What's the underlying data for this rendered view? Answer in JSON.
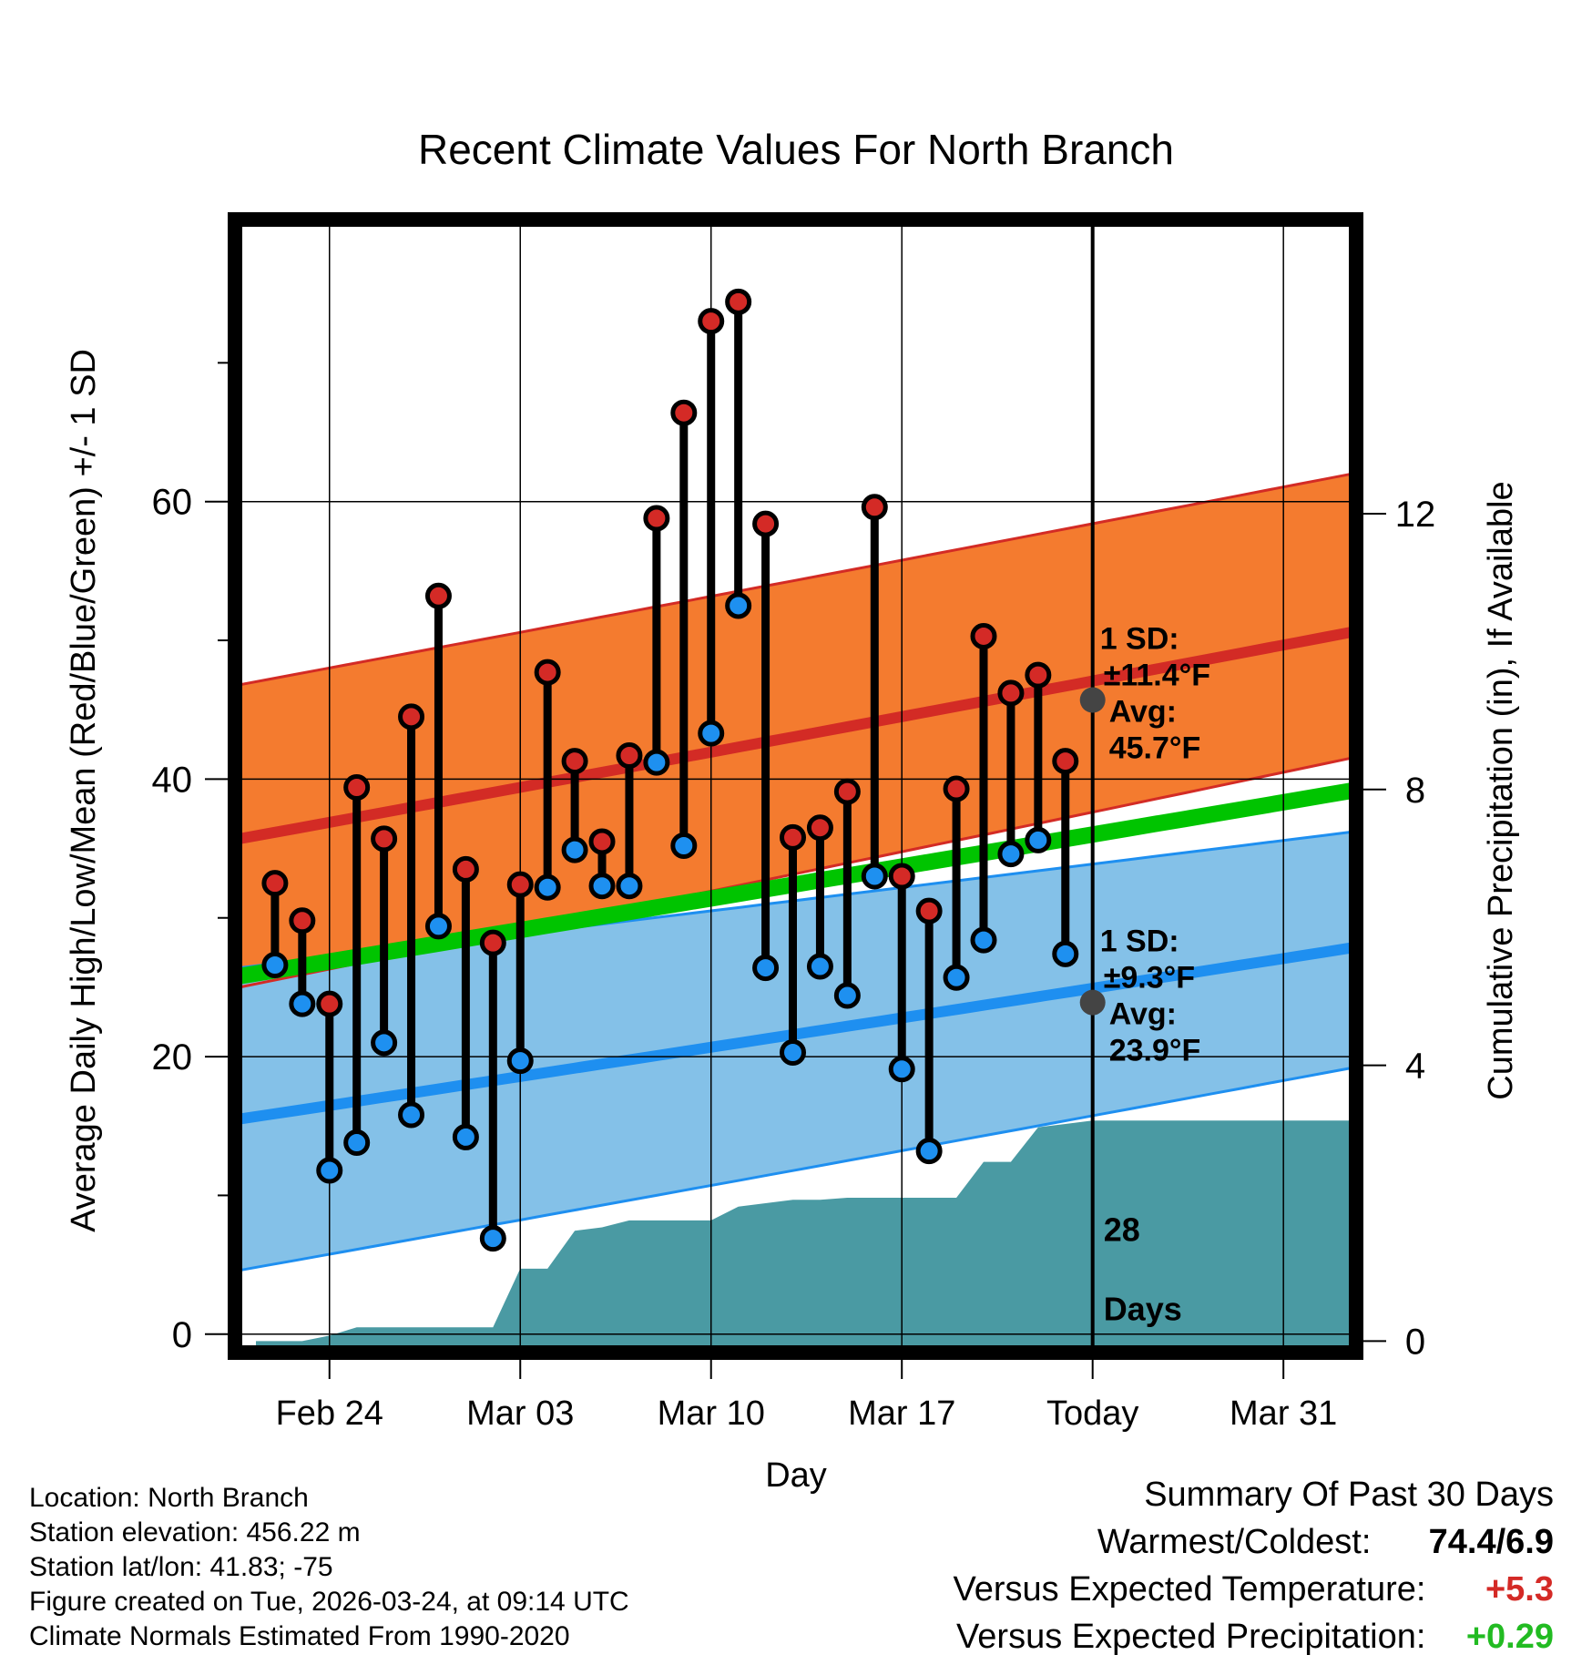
{
  "chart_data": {
    "type": "line",
    "title": "Recent Climate Values For North Branch",
    "xlabel": "Day",
    "ylabel": "Average Daily High/Low/Mean (Red/Blue/Green) +/- 1 SD",
    "y2label": "Cumulative Precipitation (in), If Available",
    "ylim": [
      -1,
      80
    ],
    "y2lim": [
      -0.1,
      16.2
    ],
    "xlim": [
      -0.3,
      40.5
    ],
    "y_ticks": [
      {
        "v": 0,
        "label": "0"
      },
      {
        "v": 20,
        "label": "20"
      },
      {
        "v": 40,
        "label": "40"
      },
      {
        "v": 60,
        "label": "60"
      }
    ],
    "y_minor_ticks": [
      10,
      30,
      50,
      70
    ],
    "y2_ticks": [
      {
        "v": 0,
        "label": "0"
      },
      {
        "v": 4,
        "label": "4"
      },
      {
        "v": 8,
        "label": "8"
      },
      {
        "v": 12,
        "label": "12"
      }
    ],
    "x_ticks": [
      {
        "d": 3,
        "label": "Feb 24"
      },
      {
        "d": 10,
        "label": "Mar 03"
      },
      {
        "d": 17,
        "label": "Mar 10"
      },
      {
        "d": 24,
        "label": "Mar 17"
      },
      {
        "d": 31,
        "label": "Today"
      },
      {
        "d": 38,
        "label": "Mar 31"
      }
    ],
    "today_index": 31,
    "normals": {
      "high_mean": {
        "start": 35.7,
        "end": 50.3
      },
      "high_upper": {
        "start": 46.8,
        "end": 61.7
      },
      "high_lower": {
        "start": 25.0,
        "end": 41.2
      },
      "low_mean": {
        "start": 15.5,
        "end": 27.6
      },
      "low_upper": {
        "start": 26.4,
        "end": 36.0
      },
      "low_lower": {
        "start": 4.6,
        "end": 18.9
      },
      "mean_line": {
        "start": 25.8,
        "end": 38.9
      }
    },
    "observed": {
      "day": [
        1,
        2,
        3,
        4,
        5,
        6,
        7,
        8,
        9,
        10,
        11,
        12,
        13,
        14,
        15,
        16,
        17,
        18,
        19,
        20,
        21,
        22,
        23,
        24,
        25,
        26,
        27,
        28,
        29,
        30
      ],
      "high": [
        32.5,
        29.8,
        23.8,
        39.4,
        35.7,
        44.5,
        53.2,
        33.5,
        28.2,
        32.4,
        47.7,
        41.3,
        35.5,
        41.7,
        58.8,
        66.4,
        73.0,
        74.4,
        58.4,
        35.8,
        36.5,
        39.1,
        59.6,
        33.0,
        30.5,
        39.3,
        50.3,
        46.2,
        47.5,
        41.3
      ],
      "low": [
        26.6,
        23.8,
        11.8,
        13.8,
        21.0,
        15.8,
        29.4,
        14.2,
        6.9,
        19.7,
        32.2,
        34.9,
        32.3,
        32.3,
        41.2,
        35.2,
        43.3,
        52.5,
        26.4,
        20.3,
        26.5,
        24.4,
        33.0,
        19.1,
        13.2,
        25.7,
        28.4,
        34.6,
        35.6,
        27.4
      ]
    },
    "precipitation": {
      "x": [
        0.3,
        2.0,
        3.0,
        4.0,
        5.0,
        6.0,
        7.0,
        8.0,
        8.5,
        9.0,
        10.0,
        11.0,
        12.0,
        13.0,
        14.0,
        15.0,
        16.0,
        17.0,
        18.0,
        19.0,
        20.0,
        21.0,
        22.0,
        23.0,
        24.0,
        25.0,
        26.0,
        27.0,
        28.0,
        29.0,
        30.0,
        31.0,
        40.5
      ],
      "y": [
        0.0,
        0.0,
        0.08,
        0.2,
        0.2,
        0.2,
        0.2,
        0.2,
        0.2,
        0.2,
        1.05,
        1.05,
        1.6,
        1.65,
        1.75,
        1.75,
        1.75,
        1.75,
        1.95,
        2.0,
        2.05,
        2.05,
        2.08,
        2.08,
        2.08,
        2.08,
        2.08,
        2.6,
        2.6,
        3.1,
        3.15,
        3.2,
        3.2
      ]
    },
    "precip_days_label": [
      "28",
      "Days"
    ],
    "annotations": {
      "high": {
        "sd_label": "1 SD:",
        "sd_value": "±11.4°F",
        "avg_label": "Avg:",
        "avg_value": "45.7°F",
        "avg": 45.7
      },
      "low": {
        "sd_label": "1 SD:",
        "sd_value": "±9.3°F",
        "avg_label": "Avg:",
        "avg_value": "23.9°F",
        "avg": 23.9
      }
    },
    "colors": {
      "high_band": "#f47b2f",
      "high_line": "#d32b25",
      "low_band": "#84c1e8",
      "low_line": "#1e8ff0",
      "mean_line": "#00c400",
      "precip": "#4a9aa3",
      "high_dot": "#d42a26",
      "low_dot": "#1e90f0",
      "annotation": "#555555"
    }
  },
  "meta": {
    "location": "Location: North Branch",
    "elevation": "Station elevation: 456.22 m",
    "latlon": "Station lat/lon: 41.83; -75",
    "created": "Figure created on Tue, 2026-03-24, at 09:14 UTC",
    "normals": "Climate Normals Estimated From 1990-2020"
  },
  "summary": {
    "title": "Summary Of Past 30 Days",
    "warmest_label": "Warmest/Coldest:",
    "warmest_value": "74.4/6.9",
    "temp_label": "Versus Expected Temperature:",
    "temp_value": "+5.3",
    "temp_color": "#d42a26",
    "precip_label": "Versus Expected Precipitation:",
    "precip_value": "+0.29",
    "precip_color": "#22bb22"
  }
}
